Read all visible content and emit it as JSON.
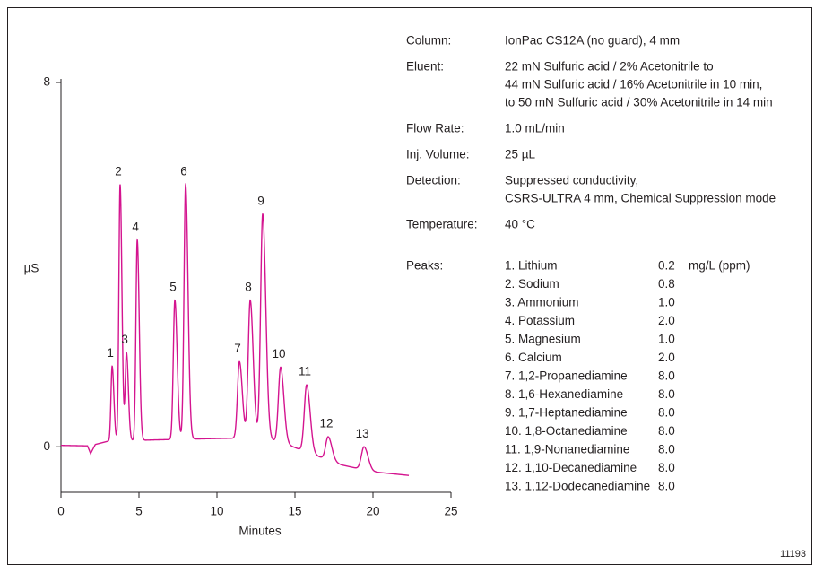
{
  "chart_data": {
    "type": "chromatogram",
    "xlabel": "Minutes",
    "ylabel": "µS",
    "xlim": [
      0,
      25
    ],
    "xticks": [
      0,
      5,
      10,
      15,
      20,
      25
    ],
    "ylim": [
      -1,
      8
    ],
    "yticks": [
      0,
      8
    ],
    "color": "#d4148f",
    "baseline_x": [
      0,
      1.7,
      1.9,
      2.2,
      3,
      6,
      10,
      13,
      14.5,
      16,
      18,
      20,
      22.3
    ],
    "baseline": [
      0.03,
      0.02,
      -0.15,
      0.05,
      0.12,
      0.15,
      0.18,
      0.2,
      0.05,
      -0.15,
      -0.4,
      -0.55,
      -0.63
    ],
    "peaks": [
      {
        "label": "1",
        "time": 3.28,
        "height": 1.77
      },
      {
        "label": "2",
        "time": 3.79,
        "height": 5.76
      },
      {
        "label": "3",
        "time": 4.2,
        "height": 2.06
      },
      {
        "label": "4",
        "time": 4.89,
        "height": 4.54
      },
      {
        "label": "5",
        "time": 7.3,
        "height": 3.22
      },
      {
        "label": "6",
        "time": 7.99,
        "height": 5.76
      },
      {
        "label": "7",
        "time": 11.44,
        "height": 1.87
      },
      {
        "label": "8",
        "time": 12.13,
        "height": 3.22
      },
      {
        "label": "9",
        "time": 12.93,
        "height": 5.11
      },
      {
        "label": "10",
        "time": 14.08,
        "height": 1.75
      },
      {
        "label": "11",
        "time": 15.75,
        "height": 1.36
      },
      {
        "label": "12",
        "time": 17.13,
        "height": 0.22
      },
      {
        "label": "13",
        "time": 19.43,
        "height": 0.0
      }
    ],
    "conditions": [
      {
        "label": "Column:",
        "lines": [
          "IonPac CS12A (no guard), 4 mm"
        ]
      },
      {
        "label": "Eluent:",
        "lines": [
          "22 mN Sulfuric acid / 2% Acetonitrile to",
          "44 mN Sulfuric acid / 16% Acetonitrile in 10 min,",
          "to 50 mN Sulfuric acid / 30% Acetonitrile in 14 min"
        ]
      },
      {
        "label": "Flow Rate:",
        "lines": [
          "1.0 mL/min"
        ]
      },
      {
        "label": "Inj. Volume:",
        "lines": [
          "25 µL"
        ]
      },
      {
        "label": "Detection:",
        "lines": [
          "Suppressed conductivity,",
          "CSRS-ULTRA 4 mm, Chemical Suppression mode"
        ]
      },
      {
        "label": "Temperature:",
        "lines": [
          "40 °C"
        ]
      }
    ],
    "peaks_heading": "Peaks:",
    "peak_unit": "mg/L (ppm)",
    "peak_table": [
      {
        "name": "1. Lithium",
        "conc": "0.2"
      },
      {
        "name": "2. Sodium",
        "conc": "0.8"
      },
      {
        "name": "3. Ammonium",
        "conc": "1.0"
      },
      {
        "name": "4. Potassium",
        "conc": "2.0"
      },
      {
        "name": "5. Magnesium",
        "conc": "1.0"
      },
      {
        "name": "6. Calcium",
        "conc": "2.0"
      },
      {
        "name": "7. 1,2-Propanediamine",
        "conc": "8.0"
      },
      {
        "name": "8. 1,6-Hexanediamine",
        "conc": "8.0"
      },
      {
        "name": "9. 1,7-Heptanediamine",
        "conc": "8.0"
      },
      {
        "name": "10. 1,8-Octanediamine",
        "conc": "8.0"
      },
      {
        "name": "11. 1,9-Nonanediamine",
        "conc": "8.0"
      },
      {
        "name": "12. 1,10-Decanediamine",
        "conc": "8.0"
      },
      {
        "name": "13. 1,12-Dodecanediamine",
        "conc": "8.0"
      }
    ],
    "figure_id": "11193"
  }
}
